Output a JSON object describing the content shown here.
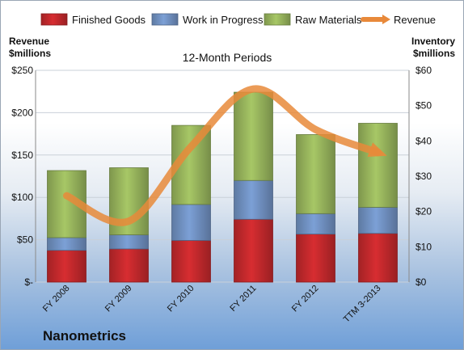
{
  "chart_data": {
    "type": "bar",
    "stacked": true,
    "title": "12-Month Periods",
    "company": "Nanometrics",
    "categories": [
      "FY 2008",
      "FY 2009",
      "FY 2010",
      "FY 2011",
      "FY 2012",
      "TTM 3-2013"
    ],
    "series": [
      {
        "name": "Finished Goods",
        "axis": "right",
        "color": "#c0282c",
        "values": [
          9.0,
          9.4,
          11.8,
          17.8,
          13.6,
          13.8
        ]
      },
      {
        "name": "Work in Progress",
        "axis": "right",
        "color": "#6f8fbf",
        "values": [
          3.6,
          4.0,
          10.2,
          11.0,
          5.8,
          7.4
        ]
      },
      {
        "name": "Raw Materials",
        "axis": "right",
        "color": "#95b25b",
        "values": [
          19.0,
          19.0,
          22.4,
          25.0,
          22.4,
          23.8
        ]
      },
      {
        "name": "Revenue",
        "axis": "left",
        "type": "line",
        "color": "#e8893a",
        "values": [
          102,
          72,
          160,
          228,
          180,
          153
        ]
      }
    ],
    "left_axis": {
      "title_line1": "Revenue",
      "title_line2": "$millions",
      "ylim": [
        0,
        250
      ],
      "ticks": [
        0,
        50,
        100,
        150,
        200,
        250
      ],
      "tick_labels": [
        "$-",
        "$50",
        "$100",
        "$150",
        "$200",
        "$250"
      ]
    },
    "right_axis": {
      "title_line1": "Inventory",
      "title_line2": "$millions",
      "ylim": [
        0,
        60
      ],
      "ticks": [
        0,
        10,
        20,
        30,
        40,
        50,
        60
      ],
      "tick_labels": [
        "$0",
        "$10",
        "$20",
        "$30",
        "$40",
        "$50",
        "$60"
      ]
    },
    "grid": true,
    "legend_position": "top"
  }
}
